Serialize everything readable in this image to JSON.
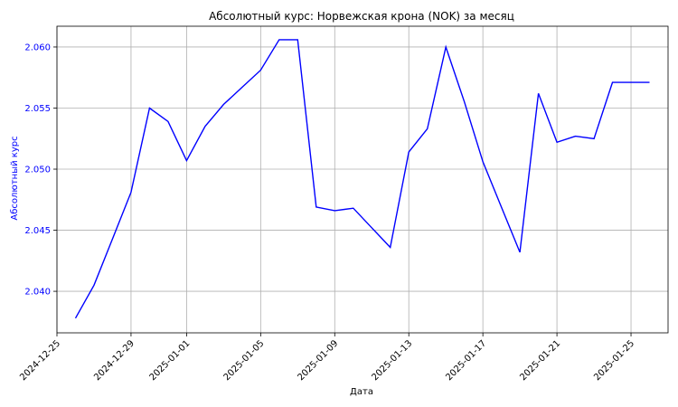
{
  "chart_data": {
    "type": "line",
    "title": "Абсолютный курс: Норвежская крона (NOK) за месяц",
    "xlabel": "Дата",
    "ylabel": "Абсолютный курс",
    "ylim": [
      2.0366,
      2.0617
    ],
    "xlim": [
      "2024-12-25",
      "2025-01-27"
    ],
    "grid": true,
    "line_color": "#0000ff",
    "ylabel_color": "#0000ff",
    "x_ticks": [
      "2024-12-25",
      "2024-12-29",
      "2025-01-01",
      "2025-01-05",
      "2025-01-09",
      "2025-01-13",
      "2025-01-17",
      "2025-01-21",
      "2025-01-25"
    ],
    "y_ticks": [
      "2.040",
      "2.045",
      "2.050",
      "2.055",
      "2.060"
    ],
    "series": [
      {
        "x": [
          "2024-12-26",
          "2024-12-27",
          "2024-12-28",
          "2024-12-29",
          "2024-12-30",
          "2024-12-31",
          "2025-01-01",
          "2025-01-02",
          "2025-01-03",
          "2025-01-04",
          "2025-01-05",
          "2025-01-06",
          "2025-01-07",
          "2025-01-08",
          "2025-01-09",
          "2025-01-10",
          "2025-01-11",
          "2025-01-12",
          "2025-01-13",
          "2025-01-14",
          "2025-01-15",
          "2025-01-16",
          "2025-01-17",
          "2025-01-18",
          "2025-01-19",
          "2025-01-20",
          "2025-01-21",
          "2025-01-22",
          "2025-01-23",
          "2025-01-24",
          "2025-01-25",
          "2025-01-26"
        ],
        "y": [
          2.0378,
          2.0405,
          2.0443,
          2.0481,
          2.055,
          2.0539,
          2.0507,
          2.0535,
          2.0553,
          2.0567,
          2.0581,
          2.0606,
          2.0606,
          2.0469,
          2.0466,
          2.0468,
          2.0452,
          2.0436,
          2.0514,
          2.0533,
          2.06,
          2.0555,
          2.0506,
          2.0469,
          2.0432,
          2.0562,
          2.0522,
          2.0527,
          2.0525,
          2.0571,
          2.0571,
          2.0571
        ]
      }
    ]
  }
}
